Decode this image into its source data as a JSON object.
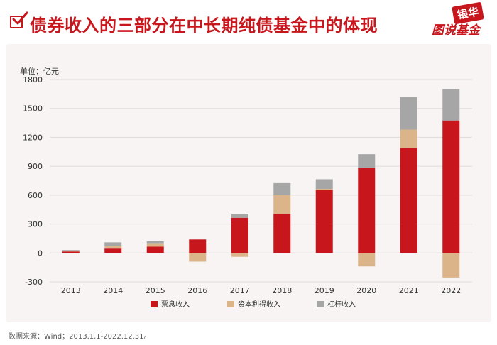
{
  "header": {
    "title": "债券收入的三部分在中长期纯债基金中的体现",
    "logo_bank": "银华",
    "logo_sub": "图说基金"
  },
  "footer": {
    "source": "数据来源：Wind；2013.1.1-2022.12.31。"
  },
  "colors": {
    "coupon": "#c8161d",
    "capital": "#dcb48a",
    "leverage": "#a6a6a6",
    "accent": "#c8161d"
  },
  "chart_data": {
    "type": "bar",
    "stacked": true,
    "unit_label": "单位：亿元",
    "categories": [
      "2013",
      "2014",
      "2015",
      "2016",
      "2017",
      "2018",
      "2019",
      "2020",
      "2021",
      "2022"
    ],
    "series": [
      {
        "name": "票息收入",
        "color": "#c8161d",
        "values": [
          15,
          45,
          65,
          140,
          365,
          405,
          655,
          880,
          1090,
          1375
        ]
      },
      {
        "name": "资本利得收入",
        "color": "#dcb48a",
        "values": [
          5,
          30,
          30,
          -90,
          -40,
          195,
          10,
          -140,
          190,
          -255
        ]
      },
      {
        "name": "杠杆收入",
        "color": "#a6a6a6",
        "values": [
          10,
          35,
          25,
          0,
          35,
          125,
          100,
          145,
          340,
          325
        ]
      }
    ],
    "yticks": [
      1800,
      1500,
      1200,
      900,
      600,
      300,
      0,
      -300
    ],
    "ylim": [
      -300,
      1800
    ],
    "legend_position": "bottom-center",
    "grid": true
  }
}
